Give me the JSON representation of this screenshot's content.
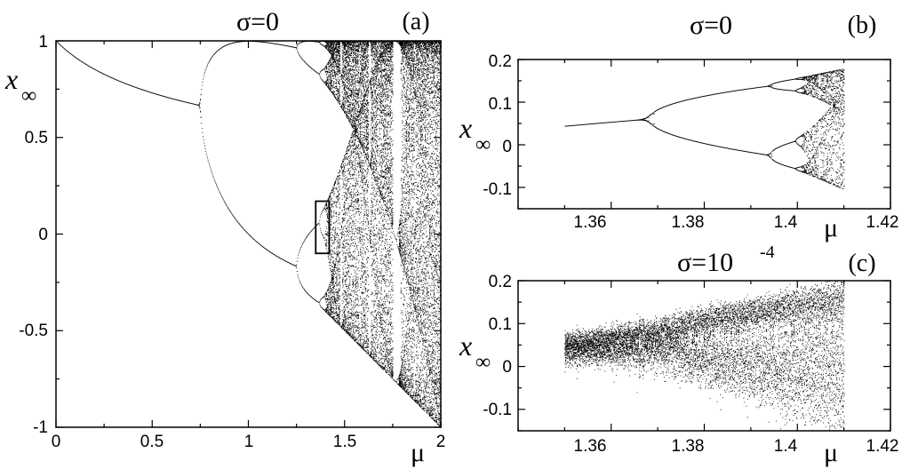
{
  "chart_data": [
    {
      "panel": "(a)",
      "type": "scatter",
      "title": "σ=0",
      "xlabel": "μ",
      "ylabel": "x",
      "ylabel_subscript": "∞",
      "xlim": [
        0,
        2
      ],
      "ylim": [
        -1,
        1
      ],
      "xticks": [
        "0",
        "0.5",
        "1",
        "1.5",
        "2"
      ],
      "yticks": [
        "1",
        "0.5",
        "0",
        "-0.5",
        "-1"
      ],
      "series": [
        {
          "values": [
            [
              0,
              1.0
            ],
            [
              0.25,
              0.828
            ],
            [
              0.5,
              0.732
            ],
            [
              0.75,
              0.667
            ]
          ]
        },
        {
          "values": [
            [
              0.75,
              0.5
            ],
            [
              1.0,
              1.0
            ],
            [
              1.25,
              0.894
            ],
            [
              1.25,
              -0.1
            ],
            [
              1.0,
              0.0
            ]
          ]
        },
        {
          "values": [
            [
              1.36,
              0.93
            ],
            [
              1.38,
              0.95
            ],
            [
              1.4,
              0.96
            ],
            [
              1.38,
              -0.02
            ]
          ]
        }
      ],
      "inset_box": {
        "xlim": [
          1.35,
          1.42
        ],
        "ylim": [
          -0.1,
          0.17
        ]
      },
      "grid": false
    },
    {
      "panel": "(b)",
      "type": "scatter",
      "title": "σ=0",
      "xlabel": "μ",
      "ylabel": "x",
      "ylabel_subscript": "∞",
      "xlim": [
        1.34,
        1.42
      ],
      "ylim": [
        -0.15,
        0.2
      ],
      "xticks": [
        "1.36",
        "1.38",
        "1.4",
        "1.42"
      ],
      "yticks": [
        "0.2",
        "0.1",
        "0",
        "-0.1"
      ],
      "series": [
        {
          "values": [
            [
              1.35,
              0.045
            ],
            [
              1.36,
              0.053
            ],
            [
              1.3683,
              0.061
            ]
          ]
        },
        {
          "values": [
            [
              1.3683,
              0.061
            ],
            [
              1.38,
              0.118
            ],
            [
              1.394,
              0.137
            ],
            [
              1.3995,
              0.145
            ]
          ]
        },
        {
          "values": [
            [
              1.3683,
              0.061
            ],
            [
              1.38,
              -0.005
            ],
            [
              1.394,
              -0.025
            ],
            [
              1.3995,
              0.005
            ]
          ]
        },
        {
          "values": [
            [
              1.4012,
              0.145
            ],
            [
              1.41,
              0.178
            ],
            [
              1.41,
              -0.105
            ]
          ]
        }
      ],
      "grid": false
    },
    {
      "panel": "(c)",
      "type": "scatter",
      "title": "σ=10",
      "title_superscript": "-4",
      "xlabel": "μ",
      "ylabel": "x",
      "ylabel_subscript": "∞",
      "xlim": [
        1.34,
        1.42
      ],
      "ylim": [
        -0.15,
        0.2
      ],
      "xticks": [
        "1.36",
        "1.38",
        "1.4",
        "1.42"
      ],
      "yticks": [
        "0.2",
        "0.1",
        "0",
        "-0.1"
      ],
      "series": [
        {
          "values": [
            [
              1.35,
              0.045
            ],
            [
              1.3683,
              0.061
            ],
            [
              1.38,
              0.118
            ],
            [
              1.394,
              0.137
            ]
          ]
        },
        {
          "values": [
            [
              1.3683,
              0.061
            ],
            [
              1.38,
              -0.005
            ],
            [
              1.394,
              -0.025
            ]
          ]
        },
        {
          "values": [
            [
              1.4,
              0.178
            ],
            [
              1.41,
              0.178
            ],
            [
              1.41,
              -0.105
            ]
          ]
        }
      ],
      "grid": false
    }
  ]
}
